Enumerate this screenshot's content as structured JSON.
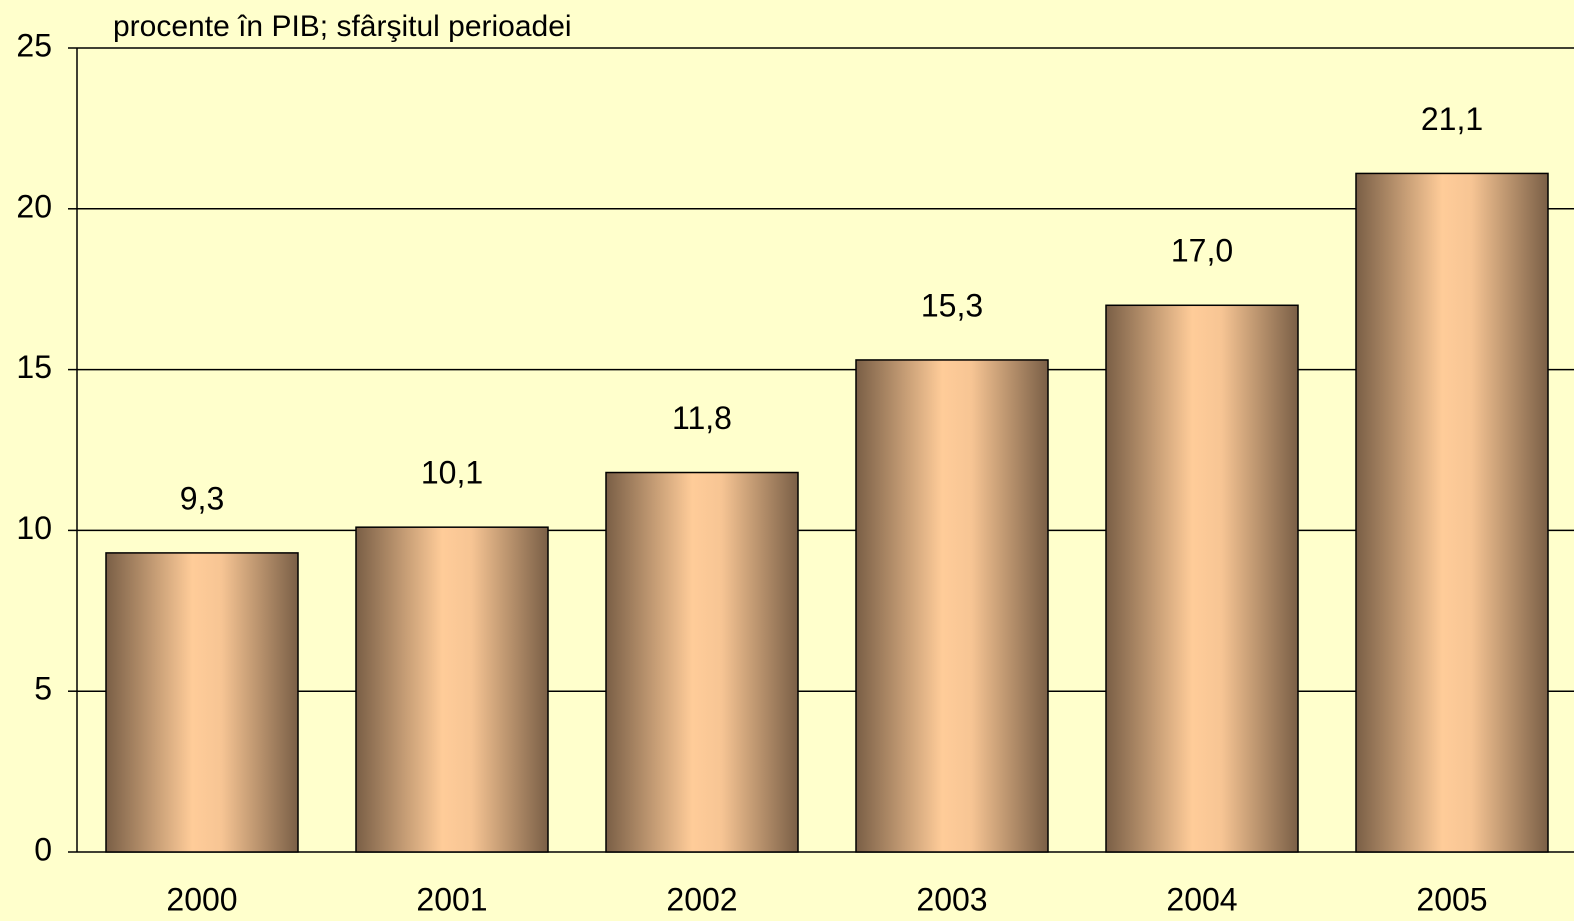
{
  "chart_data": {
    "type": "bar",
    "subtitle": "procente în PIB; sfârşitul perioadei",
    "categories": [
      "2000",
      "2001",
      "2002",
      "2003",
      "2004",
      "2005"
    ],
    "values": [
      9.3,
      10.1,
      11.8,
      15.3,
      17.0,
      21.1
    ],
    "value_labels": [
      "9,3",
      "10,1",
      "11,8",
      "15,3",
      "17,0",
      "21,1"
    ],
    "color": "#ffcc99",
    "ylim": [
      0,
      25
    ],
    "yticks": [
      0,
      5,
      10,
      15,
      20,
      25
    ],
    "grid": true
  }
}
